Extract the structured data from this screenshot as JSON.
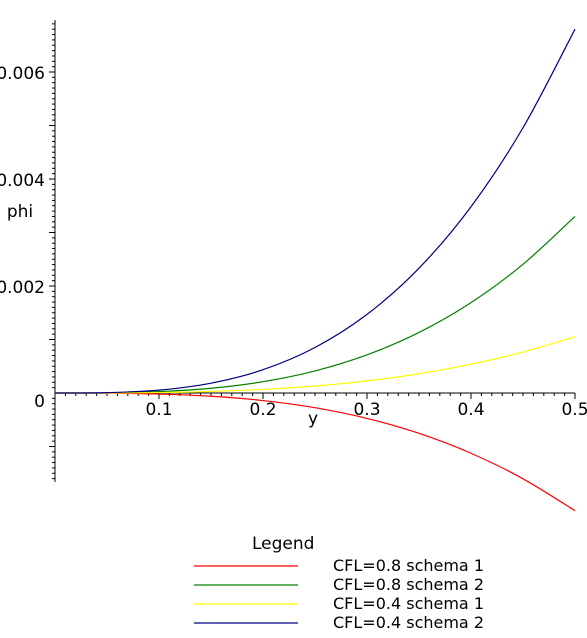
{
  "chart_data": {
    "type": "line",
    "title": "",
    "xlabel": "y",
    "ylabel": "phi",
    "xlim": [
      0,
      0.5
    ],
    "ylim": [
      -0.0016,
      0.007
    ],
    "x_ticks": [
      0.1,
      0.2,
      0.3,
      0.4,
      0.5
    ],
    "x_tick_labels": [
      "0.1",
      "0.2",
      "0.3",
      "0.4",
      "0.5"
    ],
    "y_ticks": [
      0,
      0.002,
      0.004,
      0.006
    ],
    "y_tick_labels": [
      "0",
      "0.002",
      "0.004",
      "0.006"
    ],
    "grid": false,
    "legend_title": "Legend",
    "legend_position": "bottom",
    "x": [
      0,
      0.05,
      0.1,
      0.15,
      0.2,
      0.25,
      0.3,
      0.35,
      0.4,
      0.45,
      0.5
    ],
    "series": [
      {
        "name": "CFL=0.8 schema 1",
        "color": "#ff0000",
        "values": [
          0,
          -2e-06,
          -2e-05,
          -6.1e-05,
          -0.000141,
          -0.000275,
          -0.000475,
          -0.000754,
          -0.001126,
          -0.001604,
          -0.0022
        ]
      },
      {
        "name": "CFL=0.8 schema 2",
        "color": "#008000",
        "values": [
          0,
          3e-06,
          2.6e-05,
          8.9e-05,
          0.000211,
          0.000412,
          0.000713,
          0.001132,
          0.00169,
          0.002406,
          0.0033
        ]
      },
      {
        "name": "CFL=0.4 schema 1",
        "color": "#ffff00",
        "values": [
          0,
          1e-06,
          8e-06,
          2.8e-05,
          6.7e-05,
          0.000131,
          0.000227,
          0.00036,
          0.000538,
          0.000765,
          0.00105
        ]
      },
      {
        "name": "CFL=0.4 schema 2",
        "color": "#000080",
        "values": [
          0,
          7e-06,
          5.4e-05,
          0.000184,
          0.000435,
          0.00085,
          0.001469,
          0.002333,
          0.003482,
          0.004958,
          0.0068
        ]
      }
    ]
  }
}
